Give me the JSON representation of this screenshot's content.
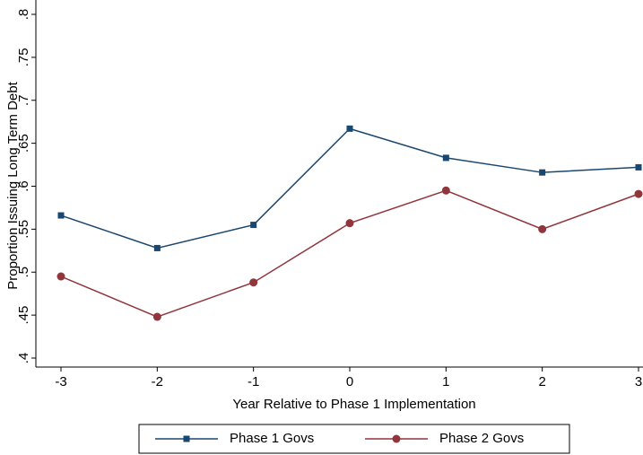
{
  "chart_data": {
    "type": "line",
    "x_label": "Year Relative to Phase 1 Implementation",
    "y_label": "Proportion Issuing Long Term Debt",
    "x": [
      -3,
      -2,
      -1,
      0,
      1,
      2,
      3
    ],
    "series": [
      {
        "name": "Phase 1 Govs",
        "color": "#1a476f",
        "marker": "square",
        "values": [
          0.566,
          0.528,
          0.555,
          0.667,
          0.633,
          0.616,
          0.622
        ]
      },
      {
        "name": "Phase 2 Govs",
        "color": "#90353b",
        "marker": "circle",
        "values": [
          0.495,
          0.448,
          0.488,
          0.557,
          0.595,
          0.55,
          0.591
        ]
      }
    ],
    "xlim": [
      -3,
      3
    ],
    "xticks": [
      -3,
      -2,
      -1,
      0,
      1,
      2,
      3
    ],
    "ylim": [
      0.4,
      0.8
    ],
    "yticks": [
      {
        "value": 0.4,
        "label": ".4"
      },
      {
        "value": 0.45,
        "label": ".45"
      },
      {
        "value": 0.5,
        "label": ".5"
      },
      {
        "value": 0.55,
        "label": ".55"
      },
      {
        "value": 0.6,
        "label": ".6"
      },
      {
        "value": 0.65,
        "label": ".65"
      },
      {
        "value": 0.7,
        "label": ".7"
      },
      {
        "value": 0.75,
        "label": ".75"
      },
      {
        "value": 0.8,
        "label": ".8"
      }
    ],
    "legend": "bottom"
  }
}
